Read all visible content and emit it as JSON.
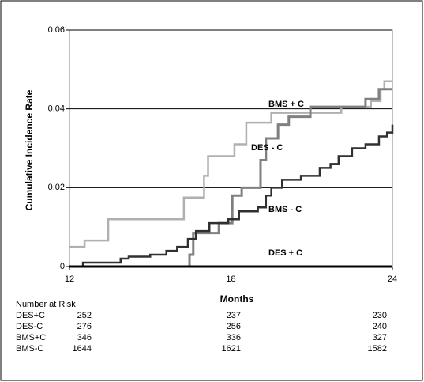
{
  "chart_data": {
    "type": "line",
    "step": true,
    "xlabel": "Months",
    "ylabel": "Cumulative Incidence Rate",
    "xlim": [
      12,
      24
    ],
    "xticks": [
      12,
      18,
      24
    ],
    "ylim": [
      0,
      0.06
    ],
    "yticks": [
      0,
      0.02,
      0.04,
      0.06
    ],
    "grid": true,
    "series": [
      {
        "name": "BMS + C",
        "color": "#b0b0b0",
        "width": 2.5,
        "x": [
          12,
          12.56,
          13.44,
          16.25,
          17.0,
          17.15,
          18.13,
          18.57,
          19.5,
          22.1,
          23.2,
          23.56,
          23.7,
          24
        ],
        "values": [
          0.005,
          0.0066,
          0.012,
          0.0175,
          0.023,
          0.028,
          0.031,
          0.0365,
          0.039,
          0.0405,
          0.042,
          0.045,
          0.047,
          0.047
        ]
      },
      {
        "name": "DES - C",
        "color": "#808080",
        "width": 3,
        "x": [
          12,
          16.46,
          16.6,
          17.55,
          18.05,
          18.4,
          19.1,
          19.3,
          19.75,
          20.15,
          20.95,
          23.0,
          23.5,
          24
        ],
        "values": [
          0,
          0.003,
          0.0085,
          0.011,
          0.018,
          0.02,
          0.027,
          0.0325,
          0.036,
          0.038,
          0.0405,
          0.0425,
          0.045,
          0.045
        ]
      },
      {
        "name": "BMS - C",
        "color": "#303030",
        "width": 2.5,
        "x": [
          12,
          12.5,
          13.9,
          14.2,
          15.0,
          15.6,
          16.0,
          16.4,
          16.7,
          17.2,
          17.9,
          18.3,
          19.0,
          19.3,
          19.5,
          19.9,
          20.6,
          21.3,
          21.7,
          22.0,
          22.5,
          23.0,
          23.5,
          23.8,
          24
        ],
        "values": [
          0,
          0.001,
          0.002,
          0.0025,
          0.003,
          0.004,
          0.005,
          0.007,
          0.009,
          0.011,
          0.012,
          0.014,
          0.015,
          0.018,
          0.02,
          0.022,
          0.023,
          0.025,
          0.026,
          0.028,
          0.03,
          0.031,
          0.033,
          0.034,
          0.036
        ]
      },
      {
        "name": "DES + C",
        "color": "#000000",
        "width": 3,
        "x": [
          12,
          24
        ],
        "values": [
          0,
          0
        ]
      }
    ]
  },
  "risk_table": {
    "title": "Number at Risk",
    "rows": [
      {
        "label": "DES+C",
        "values": [
          252,
          237,
          230
        ]
      },
      {
        "label": "DES-C",
        "values": [
          276,
          256,
          240
        ]
      },
      {
        "label": "BMS+C",
        "values": [
          346,
          336,
          327
        ]
      },
      {
        "label": "BMS-C",
        "values": [
          1644,
          1621,
          1582
        ]
      }
    ]
  }
}
